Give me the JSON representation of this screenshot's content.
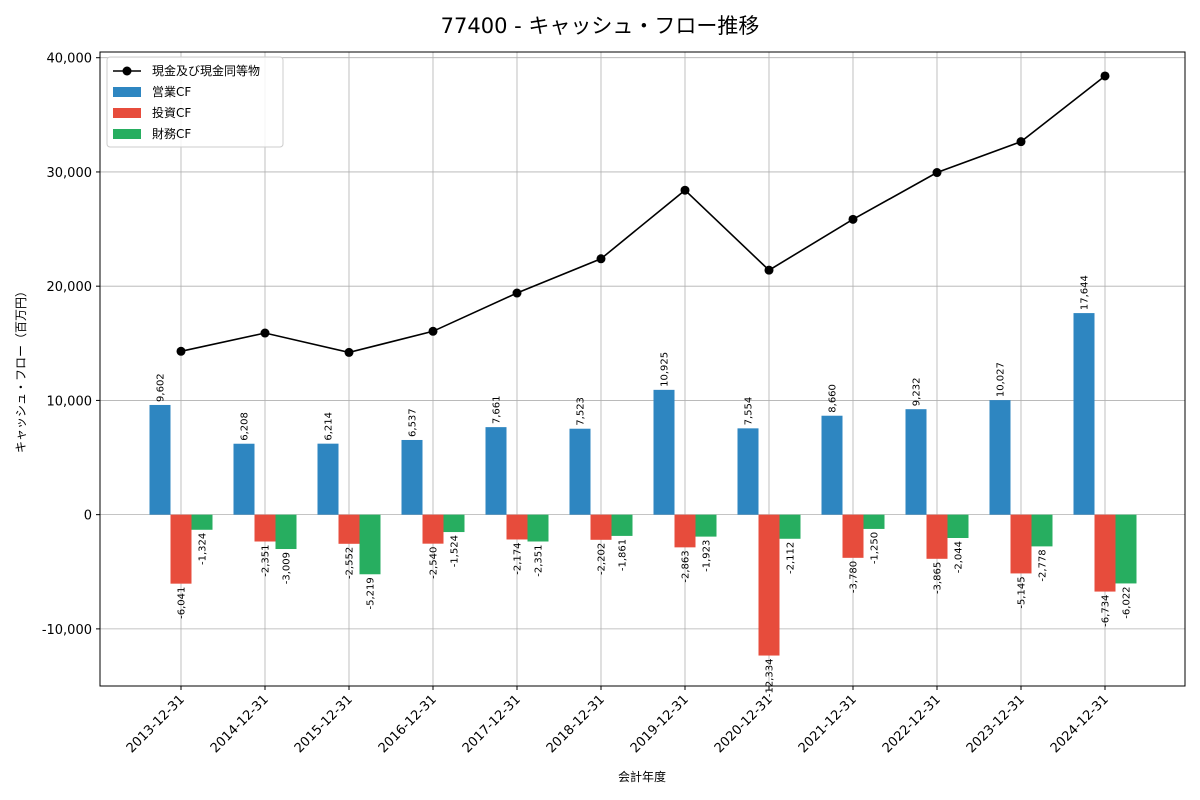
{
  "chart_data": {
    "type": "bar",
    "title": "77400 - キャッシュ・フロー推移",
    "xlabel": "会計年度",
    "ylabel": "キャッシュ・フロー（百万円）",
    "ylim": [
      -15000,
      40500
    ],
    "yticks": [
      -10000,
      0,
      10000,
      20000,
      30000,
      40000
    ],
    "ytick_labels": [
      "-10,000",
      "0",
      "10,000",
      "20,000",
      "30,000",
      "40,000"
    ],
    "grid": true,
    "legend_position": "top-left",
    "categories": [
      "2013-12-31",
      "2014-12-31",
      "2015-12-31",
      "2016-12-31",
      "2017-12-31",
      "2018-12-31",
      "2019-12-31",
      "2020-12-31",
      "2021-12-31",
      "2022-12-31",
      "2023-12-31",
      "2024-12-31"
    ],
    "series": [
      {
        "name": "営業CF",
        "kind": "bar",
        "color": "#2e86c1",
        "values": [
          9602,
          6208,
          6214,
          6537,
          7661,
          7523,
          10925,
          7554,
          8660,
          9232,
          10027,
          17644
        ],
        "labels": [
          "9,602",
          "6,208",
          "6,214",
          "6,537",
          "7,661",
          "7,523",
          "10,925",
          "7,554",
          "8,660",
          "9,232",
          "10,027",
          "17,644"
        ]
      },
      {
        "name": "投資CF",
        "kind": "bar",
        "color": "#e74c3c",
        "values": [
          -6041,
          -2351,
          -2552,
          -2540,
          -2174,
          -2202,
          -2863,
          -12334,
          -3780,
          -3865,
          -5145,
          -6734
        ],
        "labels": [
          "-6,041",
          "-2,351",
          "-2,552",
          "-2,540",
          "-2,174",
          "-2,202",
          "-2,863",
          "-12,334",
          "-3,780",
          "-3,865",
          "-5,145",
          "-6,734"
        ]
      },
      {
        "name": "財務CF",
        "kind": "bar",
        "color": "#27ae60",
        "values": [
          -1324,
          -3009,
          -5219,
          -1524,
          -2351,
          -1861,
          -1923,
          -2112,
          -1250,
          -2044,
          -2778,
          -6022
        ],
        "labels": [
          "-1,324",
          "-3,009",
          "-5,219",
          "-1,524",
          "-2,351",
          "-1,861",
          "-1,923",
          "-2,112",
          "-1,250",
          "-2,044",
          "-2,778",
          "-6,022"
        ]
      },
      {
        "name": "現金及び現金同等物",
        "kind": "line",
        "color": "#000000",
        "values": [
          14300,
          15900,
          14200,
          16050,
          19400,
          22400,
          28400,
          21400,
          25850,
          29950,
          32650,
          38400
        ]
      }
    ]
  }
}
